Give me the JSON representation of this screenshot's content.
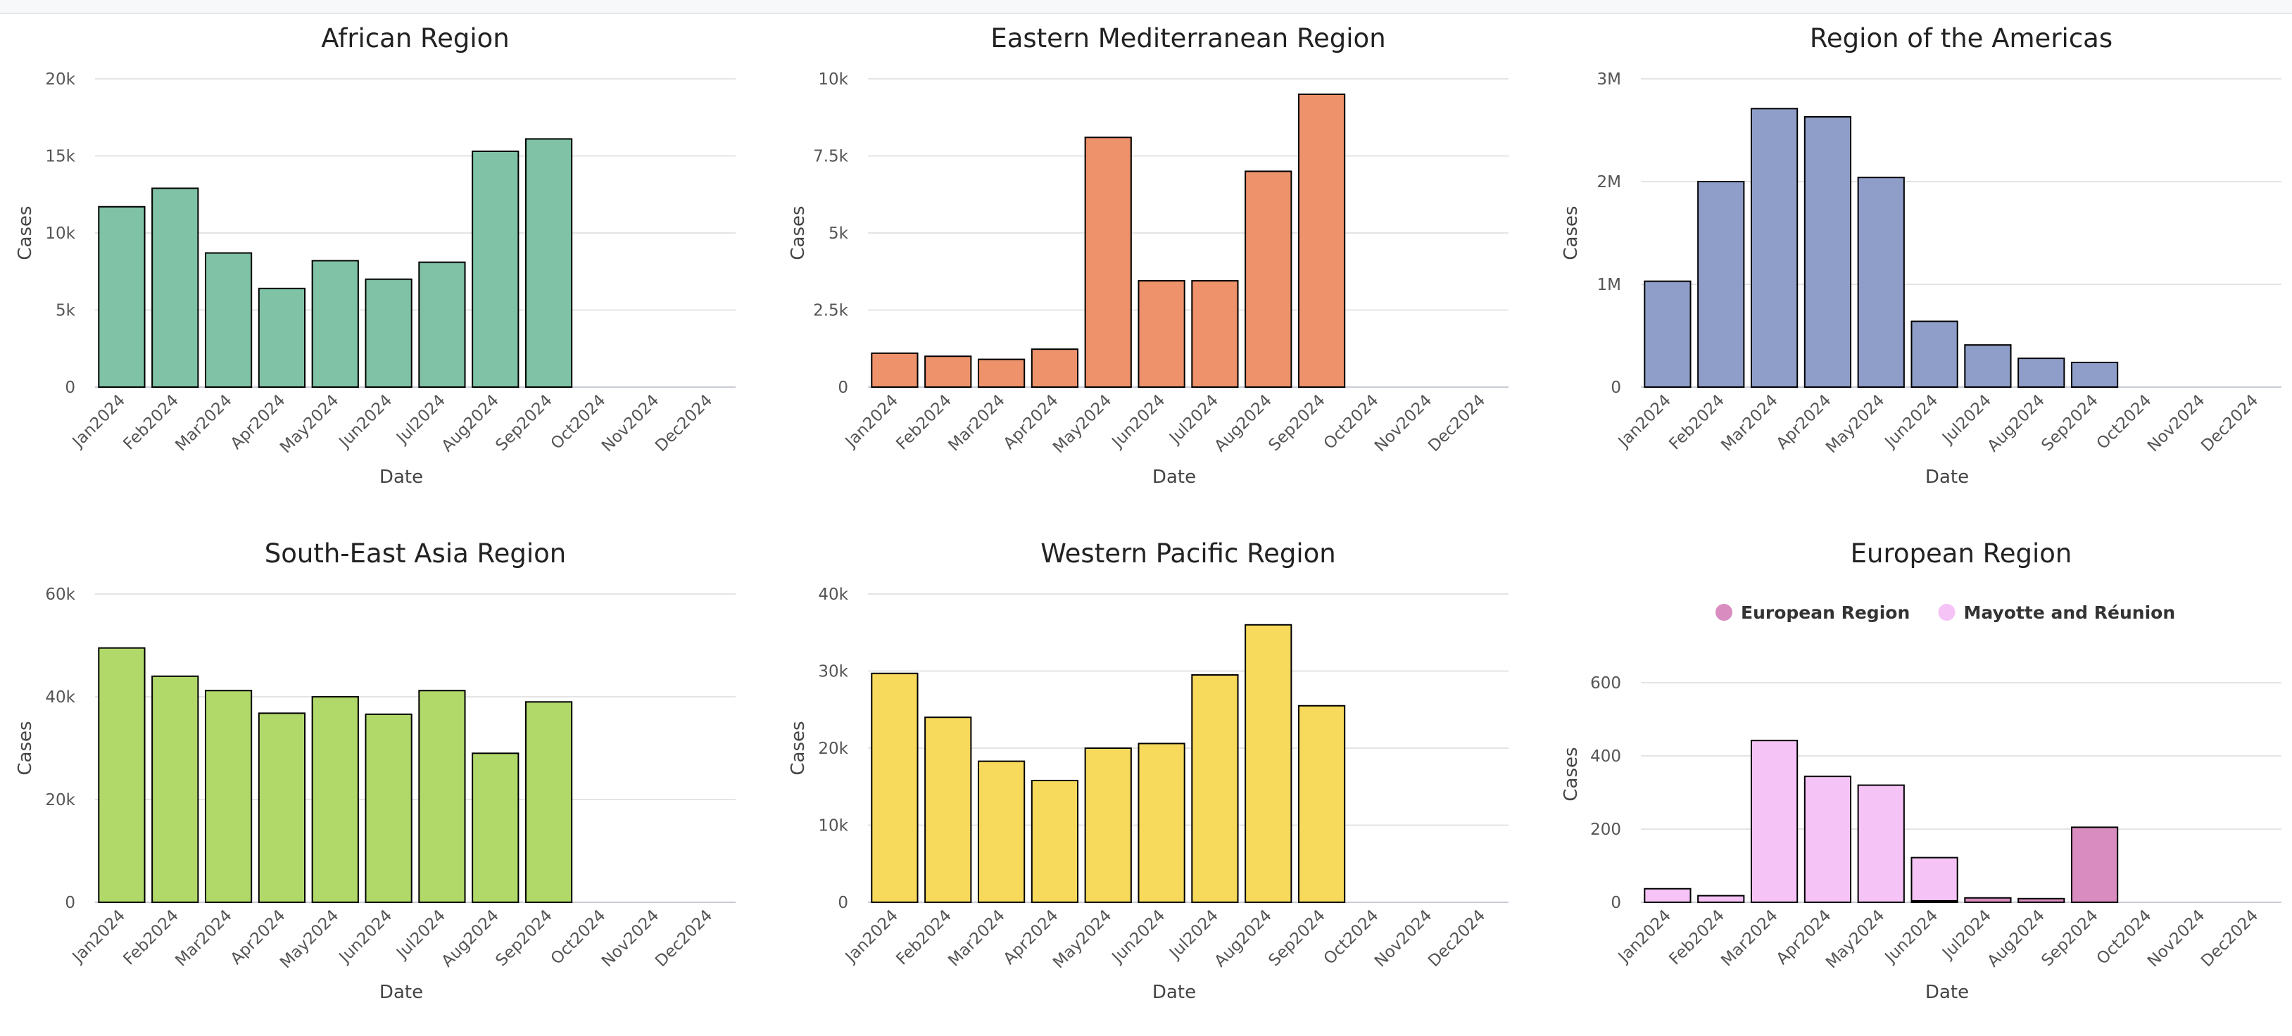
{
  "colors": {
    "gridline": "#e4e4e4",
    "axis": "#c9ccd6",
    "bar_stroke": "#000000"
  },
  "chart_data": [
    {
      "type": "bar",
      "title": "African Region",
      "xlabel": "Date",
      "ylabel": "Cases",
      "categories": [
        "Jan2024",
        "Feb2024",
        "Mar2024",
        "Apr2024",
        "May2024",
        "Jun2024",
        "Jul2024",
        "Aug2024",
        "Sep2024",
        "Oct2024",
        "Nov2024",
        "Dec2024"
      ],
      "series": [
        {
          "color": "#7fc2a6",
          "values": [
            11700,
            12900,
            8700,
            6400,
            8200,
            7000,
            8100,
            15300,
            16100,
            null,
            null,
            null
          ]
        }
      ],
      "ylim": [
        0,
        20000
      ],
      "yticks": [
        0,
        5000,
        10000,
        15000,
        20000
      ],
      "ytick_labels": [
        "0",
        "5k",
        "10k",
        "15k",
        "20k"
      ],
      "grid": true
    },
    {
      "type": "bar",
      "title": "Eastern Mediterranean Region",
      "xlabel": "Date",
      "ylabel": "Cases",
      "categories": [
        "Jan2024",
        "Feb2024",
        "Mar2024",
        "Apr2024",
        "May2024",
        "Jun2024",
        "Jul2024",
        "Aug2024",
        "Sep2024",
        "Oct2024",
        "Nov2024",
        "Dec2024"
      ],
      "series": [
        {
          "color": "#ed926b",
          "values": [
            1100,
            1000,
            900,
            1230,
            8100,
            3450,
            3450,
            7000,
            9500,
            null,
            null,
            null
          ]
        }
      ],
      "ylim": [
        0,
        10000
      ],
      "yticks": [
        0,
        2500,
        5000,
        7500,
        10000
      ],
      "ytick_labels": [
        "0",
        "2.5k",
        "5k",
        "7.5k",
        "10k"
      ],
      "grid": true
    },
    {
      "type": "bar",
      "title": "Region of the Americas",
      "xlabel": "Date",
      "ylabel": "Cases",
      "categories": [
        "Jan2024",
        "Feb2024",
        "Mar2024",
        "Apr2024",
        "May2024",
        "Jun2024",
        "Jul2024",
        "Aug2024",
        "Sep2024",
        "Oct2024",
        "Nov2024",
        "Dec2024"
      ],
      "series": [
        {
          "color": "#8f9ec9",
          "values": [
            1030000,
            2000000,
            2710000,
            2630000,
            2040000,
            640000,
            410000,
            280000,
            240000,
            null,
            null,
            null
          ]
        }
      ],
      "ylim": [
        0,
        3000000
      ],
      "yticks": [
        0,
        1000000,
        2000000,
        3000000
      ],
      "ytick_labels": [
        "0",
        "1M",
        "2M",
        "3M"
      ],
      "grid": true
    },
    {
      "type": "bar",
      "title": "South-East Asia Region",
      "xlabel": "Date",
      "ylabel": "Cases",
      "categories": [
        "Jan2024",
        "Feb2024",
        "Mar2024",
        "Apr2024",
        "May2024",
        "Jun2024",
        "Jul2024",
        "Aug2024",
        "Sep2024",
        "Oct2024",
        "Nov2024",
        "Dec2024"
      ],
      "series": [
        {
          "color": "#b1d96a",
          "values": [
            49500,
            44000,
            41200,
            36800,
            40000,
            36600,
            41200,
            29000,
            39000,
            null,
            null,
            null
          ]
        }
      ],
      "ylim": [
        0,
        60000
      ],
      "yticks": [
        0,
        20000,
        40000,
        60000
      ],
      "ytick_labels": [
        "0",
        "20k",
        "40k",
        "60k"
      ],
      "grid": true
    },
    {
      "type": "bar",
      "title": "Western Pacific Region",
      "xlabel": "Date",
      "ylabel": "Cases",
      "categories": [
        "Jan2024",
        "Feb2024",
        "Mar2024",
        "Apr2024",
        "May2024",
        "Jun2024",
        "Jul2024",
        "Aug2024",
        "Sep2024",
        "Oct2024",
        "Nov2024",
        "Dec2024"
      ],
      "series": [
        {
          "color": "#f7d95c",
          "values": [
            29700,
            24000,
            18300,
            15800,
            20000,
            20600,
            29500,
            36000,
            25500,
            null,
            null,
            null
          ]
        }
      ],
      "ylim": [
        0,
        40000
      ],
      "yticks": [
        0,
        10000,
        20000,
        30000,
        40000
      ],
      "ytick_labels": [
        "0",
        "10k",
        "20k",
        "30k",
        "40k"
      ],
      "grid": true
    },
    {
      "type": "bar",
      "stacked": true,
      "title": "European Region",
      "xlabel": "Date",
      "ylabel": "Cases",
      "categories": [
        "Jan2024",
        "Feb2024",
        "Mar2024",
        "Apr2024",
        "May2024",
        "Jun2024",
        "Jul2024",
        "Aug2024",
        "Sep2024",
        "Oct2024",
        "Nov2024",
        "Dec2024"
      ],
      "series": [
        {
          "name": "European Region",
          "color": "#d98cbf",
          "values": [
            0,
            0,
            0,
            0,
            0,
            4,
            12,
            10,
            205,
            null,
            null,
            null
          ]
        },
        {
          "name": "Mayotte and Réunion",
          "color": "#f5c3f6",
          "values": [
            37,
            18,
            442,
            344,
            320,
            118,
            0,
            0,
            0,
            null,
            null,
            null
          ]
        }
      ],
      "legend": "top-center",
      "ylim": [
        0,
        700
      ],
      "yticks": [
        0,
        200,
        400,
        600
      ],
      "ytick_labels": [
        "0",
        "200",
        "400",
        "600"
      ],
      "grid": true
    }
  ]
}
